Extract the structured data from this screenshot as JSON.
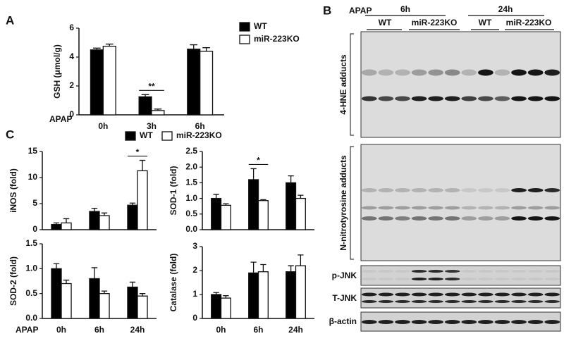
{
  "panel_labels": [
    "A",
    "B",
    "C"
  ],
  "chart_data": [
    {
      "type": "bar",
      "y_label": "GSH (μmol/g)",
      "x_label": "APAP",
      "categories": [
        "0h",
        "3h",
        "6h"
      ],
      "series": [
        {
          "name": "WT",
          "color": "#000000",
          "values": [
            4.5,
            1.25,
            4.55
          ],
          "errors": [
            0.12,
            0.15,
            0.3
          ]
        },
        {
          "name": "miR-223KO",
          "color": "#ffffff",
          "values": [
            4.75,
            0.3,
            4.4
          ],
          "errors": [
            0.15,
            0.1,
            0.25
          ]
        }
      ],
      "ylim": [
        0,
        6
      ],
      "yticks": [
        0,
        2,
        4,
        6
      ],
      "annotation": "**",
      "legend": true
    },
    {
      "type": "bar",
      "y_label": "iNOS (fold)",
      "categories": [
        null,
        null,
        null
      ],
      "series": [
        {
          "name": "WT",
          "color": "#000000",
          "values": [
            1.0,
            3.5,
            4.7
          ],
          "errors": [
            0.3,
            0.6,
            0.4
          ]
        },
        {
          "name": "miR-223KO",
          "color": "#ffffff",
          "values": [
            1.3,
            2.7,
            11.3
          ],
          "errors": [
            0.8,
            0.5,
            2.0
          ]
        }
      ],
      "ylim": [
        0,
        15
      ],
      "yticks": [
        0,
        5,
        10,
        15
      ],
      "annotation": "*",
      "legend": true
    },
    {
      "type": "bar",
      "y_label": "SOD-1 (fold)",
      "categories": [
        null,
        null,
        null
      ],
      "series": [
        {
          "color": "#000000",
          "values": [
            1.0,
            1.6,
            1.5
          ],
          "errors": [
            0.13,
            0.35,
            0.22
          ]
        },
        {
          "color": "#ffffff",
          "values": [
            0.78,
            0.93,
            1.0
          ],
          "errors": [
            0.05,
            0.03,
            0.1
          ]
        }
      ],
      "ylim": [
        0,
        2.5
      ],
      "yticks": [
        {
          "value": 0,
          "label": "0.0"
        },
        0.5,
        {
          "value": 1,
          "label": "1.0"
        },
        1.5,
        {
          "value": 2,
          "label": "2.0"
        },
        2.5
      ],
      "annotation": "*"
    },
    {
      "type": "bar",
      "y_label": "SOD-2 (fold)",
      "x_label": "APAP",
      "categories": [
        "0h",
        "6h",
        "24h"
      ],
      "series": [
        {
          "color": "#000000",
          "values": [
            1.0,
            0.8,
            0.63
          ],
          "errors": [
            0.1,
            0.22,
            0.1
          ]
        },
        {
          "color": "#ffffff",
          "values": [
            0.7,
            0.5,
            0.45
          ],
          "errors": [
            0.07,
            0.05,
            0.05
          ]
        }
      ],
      "ylim": [
        0,
        1.5
      ],
      "yticks": [
        {
          "value": 0,
          "label": "0.0"
        },
        0.5,
        {
          "value": 1,
          "label": "1.0"
        },
        1.5
      ]
    },
    {
      "type": "bar",
      "y_label": "Catalase (fold)",
      "categories": [
        "0h",
        "6h",
        "24h"
      ],
      "series": [
        {
          "color": "#000000",
          "values": [
            1.0,
            1.9,
            1.95
          ],
          "errors": [
            0.08,
            0.45,
            0.25
          ]
        },
        {
          "color": "#ffffff",
          "values": [
            0.85,
            1.95,
            2.2
          ],
          "errors": [
            0.1,
            0.3,
            0.45
          ]
        }
      ],
      "ylim": [
        0,
        3
      ],
      "yticks": [
        0,
        1,
        2,
        3
      ]
    }
  ],
  "blot": {
    "treatment_label": "APAP",
    "timepoints": [
      "6h",
      "24h"
    ],
    "groups": [
      "WT",
      "miR-223KO",
      "WT",
      "miR-223KO"
    ],
    "rows": [
      "4-HNE adducts",
      "N-nitrotyrosine adducts",
      "p-JNK",
      "T-JNK",
      "β-actin"
    ]
  }
}
